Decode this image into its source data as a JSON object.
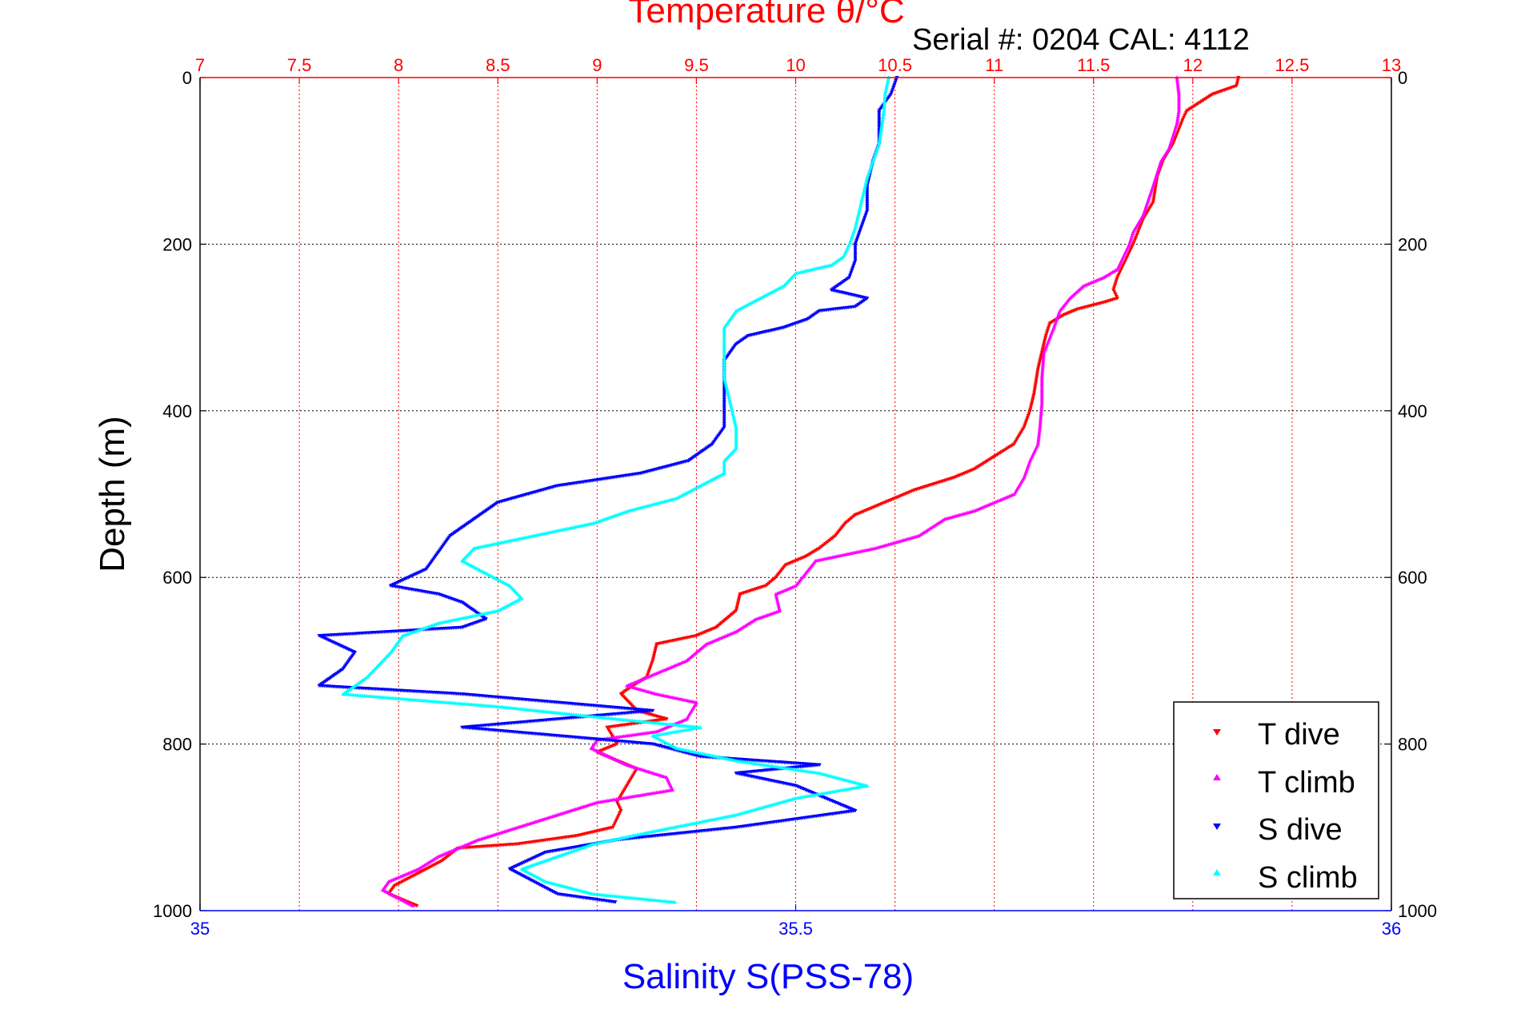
{
  "header": {
    "title": "Temperature θ/°C",
    "serial": "Serial #: 0204  CAL: 4112"
  },
  "colors": {
    "temperature_axis": "#ff0000",
    "salinity_axis": "#0000ff",
    "t_dive": "#ff0000",
    "t_climb": "#ff00ff",
    "s_dive": "#0000ff",
    "s_climb": "#00ffff"
  },
  "chart_data": {
    "type": "scatter",
    "title": "Temperature θ/°C",
    "subtitle": "Serial #: 0204  CAL: 4112",
    "ylabel": "Depth (m)",
    "xlabel_bottom": "Salinity S(PSS-78)",
    "xlabel_top": "Temperature θ/°C",
    "ylim": [
      0,
      1000
    ],
    "y_reversed": true,
    "xlim_temperature": [
      7,
      13
    ],
    "xlim_salinity": [
      35,
      36
    ],
    "x_ticks_temperature": [
      "7",
      "7.5",
      "8",
      "8.5",
      "9",
      "9.5",
      "10",
      "10.5",
      "11",
      "11.5",
      "12",
      "12.5",
      "13"
    ],
    "x_ticks_salinity": [
      "35",
      "35.5",
      "36"
    ],
    "y_ticks": [
      "0",
      "200",
      "400",
      "600",
      "800",
      "1000"
    ],
    "grid": true,
    "legend_position": "bottom-right",
    "series": [
      {
        "name": "T dive",
        "axis": "temperature",
        "marker": "triangle-down",
        "points": [
          [
            12.23,
            0
          ],
          [
            12.22,
            10
          ],
          [
            12.1,
            20
          ],
          [
            11.97,
            40
          ],
          [
            11.95,
            50
          ],
          [
            11.9,
            80
          ],
          [
            11.85,
            100
          ],
          [
            11.82,
            120
          ],
          [
            11.8,
            150
          ],
          [
            11.75,
            170
          ],
          [
            11.7,
            200
          ],
          [
            11.66,
            220
          ],
          [
            11.62,
            240
          ],
          [
            11.6,
            255
          ],
          [
            11.62,
            265
          ],
          [
            11.55,
            270
          ],
          [
            11.42,
            278
          ],
          [
            11.35,
            285
          ],
          [
            11.28,
            295
          ],
          [
            11.26,
            310
          ],
          [
            11.24,
            330
          ],
          [
            11.22,
            350
          ],
          [
            11.2,
            380
          ],
          [
            11.18,
            400
          ],
          [
            11.15,
            420
          ],
          [
            11.1,
            440
          ],
          [
            11.0,
            455
          ],
          [
            10.9,
            470
          ],
          [
            10.8,
            480
          ],
          [
            10.6,
            495
          ],
          [
            10.5,
            505
          ],
          [
            10.4,
            515
          ],
          [
            10.3,
            525
          ],
          [
            10.25,
            535
          ],
          [
            10.2,
            550
          ],
          [
            10.12,
            565
          ],
          [
            10.05,
            575
          ],
          [
            9.95,
            585
          ],
          [
            9.9,
            600
          ],
          [
            9.85,
            610
          ],
          [
            9.72,
            620
          ],
          [
            9.7,
            640
          ],
          [
            9.6,
            660
          ],
          [
            9.5,
            670
          ],
          [
            9.3,
            680
          ],
          [
            9.28,
            700
          ],
          [
            9.25,
            720
          ],
          [
            9.18,
            730
          ],
          [
            9.12,
            740
          ],
          [
            9.2,
            760
          ],
          [
            9.35,
            770
          ],
          [
            9.05,
            780
          ],
          [
            9.1,
            800
          ],
          [
            9.0,
            810
          ],
          [
            9.2,
            830
          ],
          [
            9.15,
            850
          ],
          [
            9.1,
            870
          ],
          [
            9.12,
            880
          ],
          [
            9.08,
            900
          ],
          [
            8.9,
            910
          ],
          [
            8.6,
            920
          ],
          [
            8.3,
            925
          ],
          [
            8.22,
            940
          ],
          [
            8.1,
            955
          ],
          [
            7.98,
            970
          ],
          [
            7.95,
            980
          ],
          [
            8.1,
            995
          ]
        ]
      },
      {
        "name": "T climb",
        "axis": "temperature",
        "marker": "triangle-up",
        "points": [
          [
            11.92,
            0
          ],
          [
            11.93,
            20
          ],
          [
            11.93,
            40
          ],
          [
            11.92,
            55
          ],
          [
            11.9,
            70
          ],
          [
            11.88,
            85
          ],
          [
            11.84,
            100
          ],
          [
            11.8,
            130
          ],
          [
            11.75,
            165
          ],
          [
            11.7,
            185
          ],
          [
            11.68,
            200
          ],
          [
            11.62,
            230
          ],
          [
            11.55,
            240
          ],
          [
            11.45,
            250
          ],
          [
            11.38,
            265
          ],
          [
            11.33,
            280
          ],
          [
            11.3,
            300
          ],
          [
            11.25,
            330
          ],
          [
            11.24,
            360
          ],
          [
            11.24,
            390
          ],
          [
            11.23,
            420
          ],
          [
            11.22,
            440
          ],
          [
            11.18,
            460
          ],
          [
            11.15,
            480
          ],
          [
            11.1,
            500
          ],
          [
            11.0,
            510
          ],
          [
            10.9,
            520
          ],
          [
            10.75,
            530
          ],
          [
            10.62,
            550
          ],
          [
            10.4,
            565
          ],
          [
            10.1,
            580
          ],
          [
            10.05,
            595
          ],
          [
            10.0,
            610
          ],
          [
            9.9,
            620
          ],
          [
            9.92,
            640
          ],
          [
            9.8,
            650
          ],
          [
            9.7,
            665
          ],
          [
            9.55,
            680
          ],
          [
            9.45,
            700
          ],
          [
            9.3,
            715
          ],
          [
            9.15,
            730
          ],
          [
            9.3,
            740
          ],
          [
            9.5,
            750
          ],
          [
            9.45,
            770
          ],
          [
            9.3,
            785
          ],
          [
            9.0,
            795
          ],
          [
            8.97,
            805
          ],
          [
            9.15,
            825
          ],
          [
            9.35,
            840
          ],
          [
            9.38,
            855
          ],
          [
            9.0,
            870
          ],
          [
            8.8,
            885
          ],
          [
            8.6,
            900
          ],
          [
            8.4,
            915
          ],
          [
            8.2,
            935
          ],
          [
            8.1,
            950
          ],
          [
            7.95,
            965
          ],
          [
            7.92,
            975
          ],
          [
            8.0,
            985
          ],
          [
            8.08,
            995
          ]
        ]
      },
      {
        "name": "S dive",
        "axis": "salinity",
        "marker": "triangle-down",
        "points": [
          [
            35.585,
            0
          ],
          [
            35.58,
            20
          ],
          [
            35.57,
            40
          ],
          [
            35.57,
            60
          ],
          [
            35.57,
            80
          ],
          [
            35.565,
            100
          ],
          [
            35.56,
            130
          ],
          [
            35.56,
            160
          ],
          [
            35.555,
            180
          ],
          [
            35.55,
            200
          ],
          [
            35.55,
            220
          ],
          [
            35.545,
            240
          ],
          [
            35.53,
            255
          ],
          [
            35.56,
            265
          ],
          [
            35.55,
            275
          ],
          [
            35.52,
            280
          ],
          [
            35.51,
            290
          ],
          [
            35.49,
            300
          ],
          [
            35.46,
            310
          ],
          [
            35.45,
            320
          ],
          [
            35.44,
            340
          ],
          [
            35.44,
            360
          ],
          [
            35.44,
            380
          ],
          [
            35.44,
            400
          ],
          [
            35.44,
            420
          ],
          [
            35.43,
            440
          ],
          [
            35.41,
            460
          ],
          [
            35.37,
            475
          ],
          [
            35.3,
            490
          ],
          [
            35.25,
            510
          ],
          [
            35.23,
            530
          ],
          [
            35.21,
            550
          ],
          [
            35.2,
            570
          ],
          [
            35.19,
            590
          ],
          [
            35.16,
            610
          ],
          [
            35.2,
            620
          ],
          [
            35.22,
            630
          ],
          [
            35.24,
            650
          ],
          [
            35.22,
            660
          ],
          [
            35.1,
            670
          ],
          [
            35.13,
            690
          ],
          [
            35.12,
            710
          ],
          [
            35.1,
            730
          ],
          [
            35.22,
            740
          ],
          [
            35.38,
            760
          ],
          [
            35.3,
            770
          ],
          [
            35.22,
            780
          ],
          [
            35.38,
            800
          ],
          [
            35.42,
            815
          ],
          [
            35.52,
            825
          ],
          [
            35.45,
            835
          ],
          [
            35.5,
            850
          ],
          [
            35.55,
            880
          ],
          [
            35.5,
            890
          ],
          [
            35.45,
            900
          ],
          [
            35.35,
            915
          ],
          [
            35.29,
            930
          ],
          [
            35.26,
            950
          ],
          [
            35.28,
            965
          ],
          [
            35.3,
            980
          ],
          [
            35.35,
            990
          ]
        ]
      },
      {
        "name": "S climb",
        "axis": "salinity",
        "marker": "triangle-up",
        "points": [
          [
            35.578,
            0
          ],
          [
            35.575,
            20
          ],
          [
            35.574,
            40
          ],
          [
            35.572,
            60
          ],
          [
            35.57,
            80
          ],
          [
            35.565,
            100
          ],
          [
            35.56,
            120
          ],
          [
            35.555,
            150
          ],
          [
            35.55,
            180
          ],
          [
            35.545,
            200
          ],
          [
            35.54,
            215
          ],
          [
            35.53,
            225
          ],
          [
            35.5,
            235
          ],
          [
            35.49,
            250
          ],
          [
            35.47,
            265
          ],
          [
            35.45,
            280
          ],
          [
            35.44,
            300
          ],
          [
            35.44,
            330
          ],
          [
            35.44,
            360
          ],
          [
            35.445,
            390
          ],
          [
            35.45,
            420
          ],
          [
            35.45,
            445
          ],
          [
            35.44,
            460
          ],
          [
            35.44,
            475
          ],
          [
            35.42,
            490
          ],
          [
            35.4,
            505
          ],
          [
            35.36,
            520
          ],
          [
            35.33,
            535
          ],
          [
            35.28,
            550
          ],
          [
            35.23,
            565
          ],
          [
            35.22,
            580
          ],
          [
            35.24,
            595
          ],
          [
            35.26,
            610
          ],
          [
            35.27,
            625
          ],
          [
            35.25,
            640
          ],
          [
            35.2,
            655
          ],
          [
            35.17,
            670
          ],
          [
            35.16,
            690
          ],
          [
            35.15,
            705
          ],
          [
            35.14,
            720
          ],
          [
            35.12,
            740
          ],
          [
            35.25,
            755
          ],
          [
            35.35,
            770
          ],
          [
            35.42,
            780
          ],
          [
            35.38,
            790
          ],
          [
            35.4,
            805
          ],
          [
            35.45,
            820
          ],
          [
            35.52,
            835
          ],
          [
            35.56,
            850
          ],
          [
            35.5,
            865
          ],
          [
            35.45,
            885
          ],
          [
            35.38,
            905
          ],
          [
            35.33,
            920
          ],
          [
            35.3,
            935
          ],
          [
            35.27,
            950
          ],
          [
            35.29,
            965
          ],
          [
            35.33,
            980
          ],
          [
            35.4,
            990
          ]
        ]
      }
    ]
  }
}
